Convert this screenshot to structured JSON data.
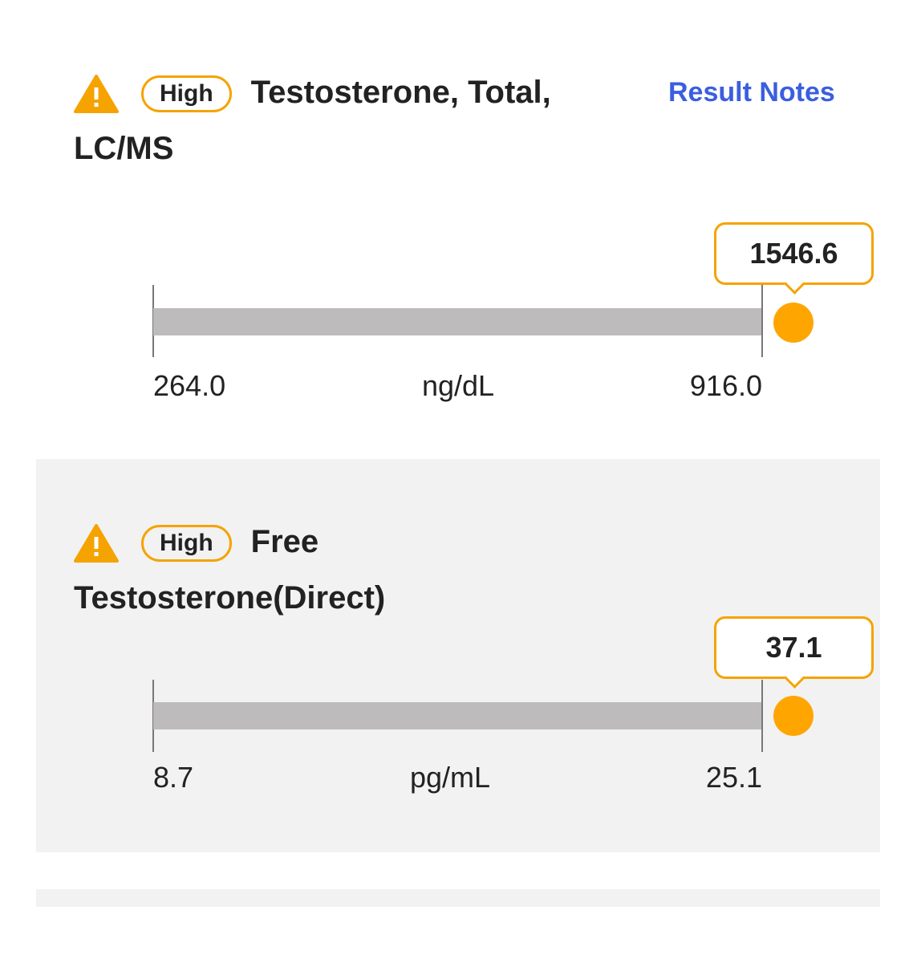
{
  "results": [
    {
      "status": "High",
      "name": "Testosterone, Total, LC/MS",
      "link": "Result Notes",
      "value": "1546.6",
      "range_low": "264.0",
      "unit": "ng/dL",
      "range_high": "916.0"
    },
    {
      "status": "High",
      "name": "Free Testosterone(Direct)",
      "value": "37.1",
      "range_low": "8.7",
      "unit": "pg/mL",
      "range_high": "25.1"
    }
  ]
}
